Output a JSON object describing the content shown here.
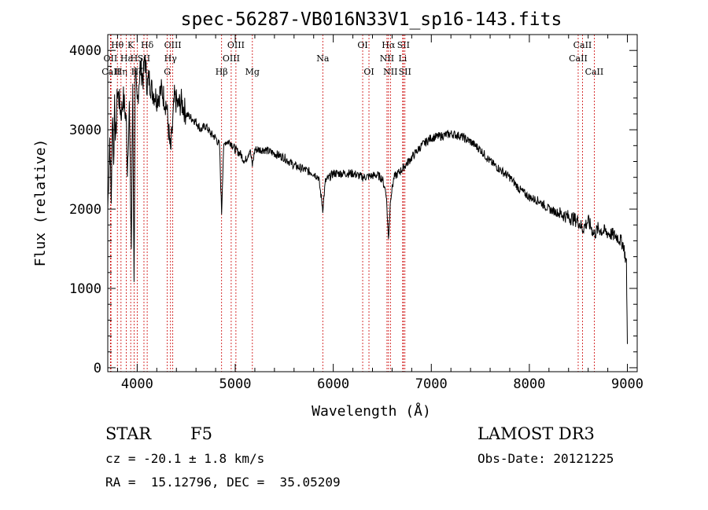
{
  "chart_data": {
    "type": "line",
    "title": "spec-56287-VB016N33V1_sp16-143.fits",
    "xlabel": "Wavelength (Å)",
    "ylabel": "Flux (relative)",
    "xlim": [
      3700,
      9100
    ],
    "ylim": [
      -50,
      4200
    ],
    "xticks": [
      4000,
      5000,
      6000,
      7000,
      8000,
      9000
    ],
    "yticks": [
      0,
      1000,
      2000,
      3000,
      4000
    ],
    "x_tick_labels": [
      "4000",
      "5000",
      "6000",
      "7000",
      "8000",
      "9000"
    ],
    "y_tick_labels": [
      "0",
      "1000",
      "2000",
      "3000",
      "4000"
    ],
    "grid": false,
    "series": [
      {
        "name": "flux",
        "x": [
          3700,
          3720,
          3735,
          3750,
          3760,
          3770,
          3780,
          3798,
          3820,
          3835,
          3860,
          3889,
          3900,
          3920,
          3940,
          3955,
          3968,
          3980,
          4000,
          4030,
          4060,
          4080,
          4102,
          4120,
          4150,
          4200,
          4250,
          4300,
          4340,
          4380,
          4420,
          4450,
          4500,
          4550,
          4600,
          4650,
          4700,
          4750,
          4800,
          4840,
          4861,
          4880,
          4900,
          4950,
          5000,
          5050,
          5100,
          5150,
          5175,
          5200,
          5300,
          5400,
          5500,
          5600,
          5700,
          5800,
          5850,
          5893,
          5920,
          6000,
          6100,
          6200,
          6300,
          6400,
          6450,
          6500,
          6540,
          6563,
          6585,
          6620,
          6700,
          6800,
          6900,
          7000,
          7100,
          7200,
          7300,
          7400,
          7500,
          7600,
          7700,
          7800,
          7900,
          8000,
          8100,
          8200,
          8300,
          8400,
          8500,
          8542,
          8600,
          8662,
          8700,
          8800,
          8900,
          8960,
          8990,
          9000
        ],
        "y": [
          2000,
          2900,
          2100,
          3300,
          2500,
          3450,
          2800,
          3500,
          3350,
          3200,
          3400,
          3100,
          2500,
          3300,
          1500,
          3600,
          1000,
          3700,
          3300,
          3800,
          3650,
          3900,
          3550,
          3650,
          3500,
          3400,
          3500,
          3300,
          2700,
          3400,
          3300,
          3350,
          3200,
          3150,
          3100,
          3000,
          3050,
          2950,
          2900,
          2800,
          1950,
          2750,
          2850,
          2850,
          2750,
          2700,
          2600,
          2750,
          2550,
          2750,
          2750,
          2700,
          2650,
          2550,
          2500,
          2450,
          2400,
          2000,
          2350,
          2450,
          2450,
          2450,
          2400,
          2420,
          2430,
          2380,
          2200,
          1620,
          2150,
          2400,
          2500,
          2650,
          2800,
          2900,
          2920,
          2950,
          2920,
          2850,
          2750,
          2600,
          2500,
          2400,
          2250,
          2150,
          2100,
          2000,
          1950,
          1900,
          1850,
          1750,
          1850,
          1680,
          1750,
          1700,
          1650,
          1550,
          1300,
          300
        ]
      }
    ],
    "line_markers": [
      {
        "label": "Hθ",
        "x": 3798,
        "row": 1
      },
      {
        "label": "OII",
        "x": 3727,
        "row": 2
      },
      {
        "label": "CaII",
        "x": 3733,
        "row": 3
      },
      {
        "label": "Hη",
        "x": 3835,
        "row": 3
      },
      {
        "label": "Hε",
        "x": 3889,
        "row": 2
      },
      {
        "label": "K",
        "x": 3934,
        "row": 1
      },
      {
        "label": "H",
        "x": 3968,
        "row": 2
      },
      {
        "label": "SII",
        "x": 4069,
        "row": 2
      },
      {
        "label": "Hδ",
        "x": 4102,
        "row": 1
      },
      {
        "label": "Hζ",
        "x": 4000,
        "row": 3
      },
      {
        "label": "OIII",
        "x": 4363,
        "row": 1
      },
      {
        "label": "Hγ",
        "x": 4340,
        "row": 2
      },
      {
        "label": "G",
        "x": 4307,
        "row": 3
      },
      {
        "label": "Hβ",
        "x": 4861,
        "row": 3
      },
      {
        "label": "OIII",
        "x": 5007,
        "row": 1
      },
      {
        "label": "OIII",
        "x": 4959,
        "row": 2
      },
      {
        "label": "Mg",
        "x": 5175,
        "row": 3
      },
      {
        "label": "Na",
        "x": 5893,
        "row": 2
      },
      {
        "label": "OI",
        "x": 6300,
        "row": 1
      },
      {
        "label": "OI",
        "x": 6364,
        "row": 3
      },
      {
        "label": "Hα",
        "x": 6563,
        "row": 1
      },
      {
        "label": "SII",
        "x": 6716,
        "row": 1
      },
      {
        "label": "NII",
        "x": 6548,
        "row": 2
      },
      {
        "label": "Li",
        "x": 6708,
        "row": 2
      },
      {
        "label": "NII",
        "x": 6583,
        "row": 3
      },
      {
        "label": "SII",
        "x": 6731,
        "row": 3
      },
      {
        "label": "CaII",
        "x": 8542,
        "row": 1
      },
      {
        "label": "CaII",
        "x": 8498,
        "row": 2
      },
      {
        "label": "CaII",
        "x": 8662,
        "row": 3
      }
    ],
    "colors": {
      "spectrum": "#000000",
      "marker": "#cc0000",
      "axis": "#000000"
    }
  },
  "info": {
    "object_class": "STAR",
    "subclass": "F5",
    "survey": "LAMOST DR3",
    "redshift": "cz = -20.1 ± 1.8 km/s",
    "obs_date": "Obs-Date: 20121225",
    "coords": "RA =  15.12796, DEC =  35.05209"
  }
}
